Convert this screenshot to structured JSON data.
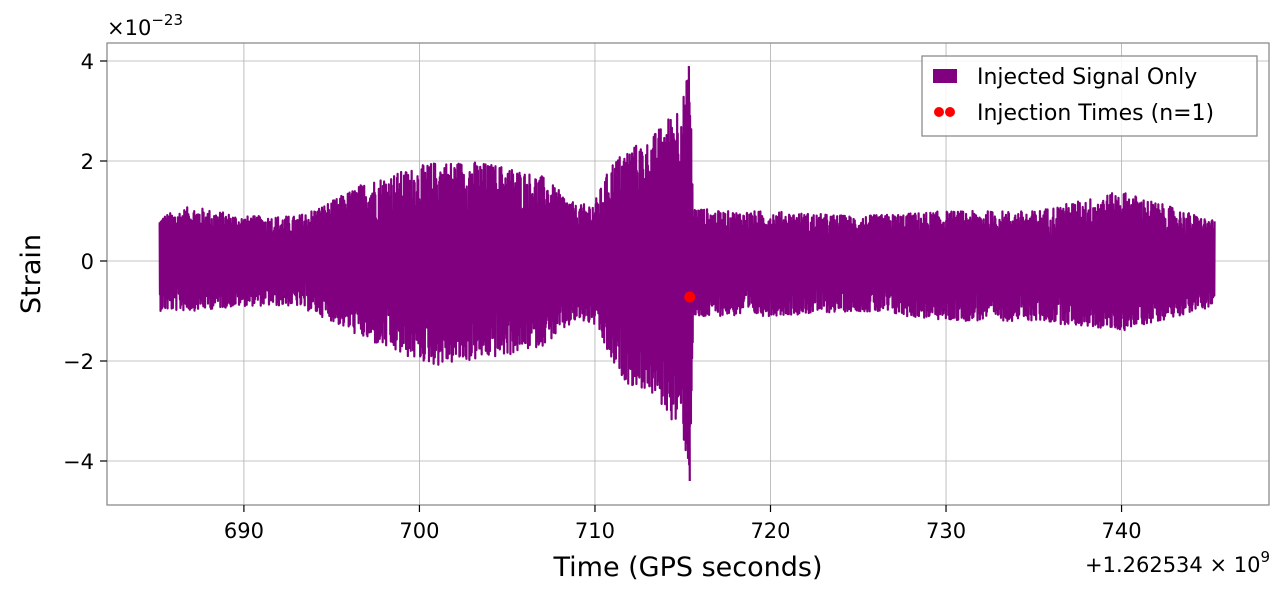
{
  "chart_data": {
    "type": "line",
    "xlabel": "Time (GPS seconds)",
    "ylabel": "Strain",
    "x_offset_label": "+1.262534 × 10",
    "x_offset_exponent": "9",
    "y_scale_label": "×10",
    "y_scale_exponent": "−23",
    "xlim": [
      682.2,
      748.4
    ],
    "ylim": [
      -4.88,
      4.36
    ],
    "x_ticks": [
      690,
      700,
      710,
      720,
      730,
      740
    ],
    "x_tick_labels": [
      "690",
      "700",
      "710",
      "720",
      "730",
      "740"
    ],
    "y_ticks": [
      4,
      2,
      0,
      -2,
      -4
    ],
    "y_tick_labels": [
      "4",
      "2",
      "0",
      "−2",
      "−4"
    ],
    "grid": true,
    "legend_position": "top-right",
    "series": [
      {
        "name": "Injected Signal Only",
        "kind": "line",
        "color": "#800080",
        "x_start": 685.2,
        "x_end": 745.3,
        "merger_time": 715.4,
        "envelope": {
          "x": [
            685.2,
            687,
            690,
            693,
            695,
            697,
            699,
            701,
            703,
            705,
            707,
            709,
            710,
            711,
            712,
            713,
            714,
            715,
            715.4,
            715.6,
            717,
            720,
            725,
            730,
            735,
            740,
            745.3
          ],
          "upper": [
            0.9,
            1.1,
            0.9,
            0.9,
            1.2,
            1.6,
            1.8,
            2.0,
            2.0,
            1.9,
            1.7,
            1.1,
            1.2,
            2.0,
            2.3,
            2.4,
            2.8,
            3.3,
            3.9,
            1.1,
            1.0,
            1.0,
            0.9,
            1.0,
            1.0,
            1.4,
            0.8
          ],
          "lower": [
            -1.0,
            -1.0,
            -0.9,
            -0.9,
            -1.2,
            -1.6,
            -1.9,
            -2.1,
            -2.0,
            -1.9,
            -1.7,
            -1.2,
            -1.3,
            -2.1,
            -2.5,
            -2.6,
            -3.0,
            -3.5,
            -4.4,
            -1.2,
            -1.1,
            -1.1,
            -1.0,
            -1.2,
            -1.2,
            -1.4,
            -0.9
          ]
        }
      },
      {
        "name": "Injection Times (n=1)",
        "kind": "scatter",
        "color": "#ff0000",
        "x": [
          715.4
        ],
        "y": [
          -0.72
        ]
      }
    ]
  }
}
